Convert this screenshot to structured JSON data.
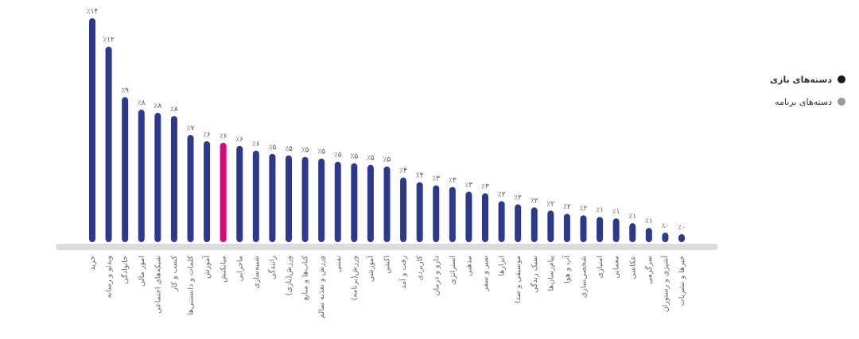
{
  "chart_data": {
    "type": "bar",
    "categories": [
      "خرید",
      "ویدئو و رسانه",
      "خانوادگی",
      "امور مالی",
      "شبکه‌های اجتماعی",
      "کسب و کار",
      "کلمات و دانستنی‌ها",
      "آموزش",
      "میانکنش",
      "ماجرایی",
      "شبیه‌سازی",
      "رانندگی",
      "ورزش(بازی)",
      "کتاب‌ها و منابع",
      "ورزش و تغذیه سالم",
      "تفننی",
      "ورزش(برنامه)",
      "آموزشی",
      "اکشن",
      "رفت و آمد",
      "کاربردی",
      "دارو و درمان",
      "استراتژی",
      "مذهبی",
      "سیر و سفر",
      "ابزارها",
      "موسیقی و صدا",
      "سبک زندگی",
      "پیام‌رسان‌ها",
      "آب و هوا",
      "شخصی‌سازی",
      "امتیازی",
      "معمایی",
      "عکاسی",
      "سرگرمی",
      "آشپزی و رستوران",
      "خبرها و نشریات"
    ],
    "values": [
      14,
      12.2,
      9,
      8.2,
      8,
      7.8,
      6.6,
      6.2,
      6.1,
      5.9,
      5.6,
      5.4,
      5.3,
      5.2,
      5.1,
      4.9,
      4.8,
      4.7,
      4.6,
      3.9,
      3.6,
      3.4,
      3.3,
      3.0,
      2.9,
      2.4,
      2.2,
      2.0,
      1.8,
      1.6,
      1.5,
      1.4,
      1.3,
      1.0,
      0.7,
      0.4,
      0.3
    ],
    "value_labels": [
      "٪۱۴",
      "٪۱۲",
      "٪۹",
      "٪۸",
      "٪۸",
      "٪۸",
      "٪۷",
      "٪۶",
      "٪۶",
      "٪۶",
      "٪۶",
      "٪۵",
      "٪۵",
      "٪۵",
      "٪۵",
      "٪۵",
      "٪۵",
      "٪۵",
      "٪۵",
      "٪۴",
      "٪۴",
      "٪۳",
      "٪۳",
      "٪۳",
      "٪۳",
      "٪۲",
      "٪۲",
      "٪۲",
      "٪۲",
      "٪۲",
      "٪۲",
      "٪۱",
      "٪۱",
      "٪۱",
      "٪۱",
      "٪۰",
      "٪۰"
    ],
    "color": "#2b3990",
    "colors": [
      "#2b3990",
      "#2b3990",
      "#2b3990",
      "#2b3990",
      "#2b3990",
      "#2b3990",
      "#2b3990",
      "#2b3990",
      "#e5007d",
      "#2b3990",
      "#2b3990",
      "#2b3990",
      "#2b3990",
      "#2b3990",
      "#2b3990",
      "#2b3990",
      "#2b3990",
      "#2b3990",
      "#2b3990",
      "#2b3990",
      "#2b3990",
      "#2b3990",
      "#2b3990",
      "#2b3990",
      "#2b3990",
      "#2b3990",
      "#2b3990",
      "#2b3990",
      "#2b3990",
      "#2b3990",
      "#2b3990",
      "#2b3990",
      "#2b3990",
      "#2b3990",
      "#2b3990",
      "#2b3990",
      "#2b3990"
    ],
    "ylim": [
      0,
      14
    ],
    "legend": [
      {
        "name": "دسته‌های بازی",
        "color": "#1a1a1a"
      },
      {
        "name": "دسته‌های برنامه",
        "color": "#999999"
      }
    ]
  }
}
